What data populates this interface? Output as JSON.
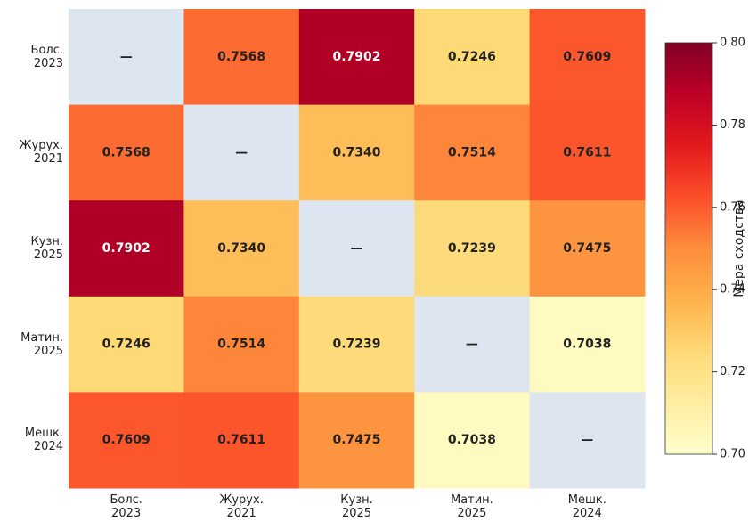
{
  "chart_data": {
    "type": "heatmap",
    "rows": [
      "Болс.\n2023",
      "Журух.\n2021",
      "Кузн.\n2025",
      "Матин.\n2025",
      "Мешк.\n2024"
    ],
    "columns": [
      "Болс.\n2023",
      "Журух.\n2021",
      "Кузн.\n2025",
      "Матин.\n2025",
      "Мешк.\n2024"
    ],
    "values": [
      [
        null,
        0.7568,
        0.7902,
        0.7246,
        0.7609
      ],
      [
        0.7568,
        null,
        0.734,
        0.7514,
        0.7611
      ],
      [
        0.7902,
        0.734,
        null,
        0.7239,
        0.7475
      ],
      [
        0.7246,
        0.7514,
        0.7239,
        null,
        0.7038
      ],
      [
        0.7609,
        0.7611,
        0.7475,
        0.7038,
        null
      ]
    ],
    "value_labels": [
      [
        "—",
        "0.7568",
        "0.7902",
        "0.7246",
        "0.7609"
      ],
      [
        "0.7568",
        "—",
        "0.7340",
        "0.7514",
        "0.7611"
      ],
      [
        "0.7902",
        "0.7340",
        "—",
        "0.7239",
        "0.7475"
      ],
      [
        "0.7246",
        "0.7514",
        "0.7239",
        "—",
        "0.7038"
      ],
      [
        "0.7609",
        "0.7611",
        "0.7475",
        "0.7038",
        "—"
      ]
    ],
    "colormap": [
      "#ffffcc",
      "#ffeda0",
      "#fed976",
      "#feb24c",
      "#fd8d3c",
      "#fc4e2a",
      "#e31a1c",
      "#bd0026",
      "#800026"
    ],
    "missing_color": "#dde6f0",
    "clim": [
      0.7,
      0.8
    ],
    "cticks": [
      {
        "value": 0.7,
        "label": "0.70"
      },
      0.72,
      0.74,
      0.76,
      0.78,
      {
        "value": 0.8,
        "label": "0.80"
      }
    ],
    "colorbar_label": "Мера сходства"
  }
}
